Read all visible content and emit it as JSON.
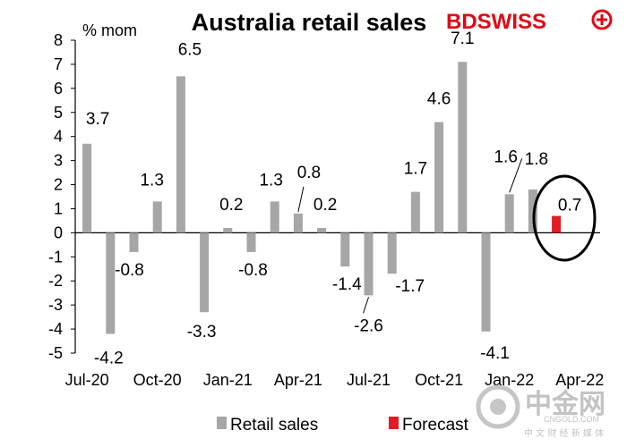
{
  "brand": {
    "logo_text_dark": "BD",
    "logo_text_red": "SWISS",
    "logo_color": "#e30613",
    "watermark_cn": "中金网",
    "watermark_url": "CNGOLD.COM",
    "watermark_sub": "中 文 财 经 新 媒 体"
  },
  "chart_data": {
    "type": "bar",
    "title": "Australia retail sales",
    "ylabel": "% mom",
    "ylim": [
      -5,
      8
    ],
    "yticks": [
      -5,
      -4,
      -3,
      -2,
      -1,
      0,
      1,
      2,
      3,
      4,
      5,
      6,
      7,
      8
    ],
    "categories": [
      "Jul-20",
      "Aug-20",
      "Sep-20",
      "Oct-20",
      "Nov-20",
      "Dec-20",
      "Jan-21",
      "Feb-21",
      "Mar-21",
      "Apr-21",
      "May-21",
      "Jun-21",
      "Jul-21",
      "Aug-21",
      "Sep-21",
      "Oct-21",
      "Nov-21",
      "Dec-21",
      "Jan-22",
      "Feb-22",
      "Mar-22",
      "Apr-22"
    ],
    "xtick_labels": [
      "Jul-20",
      "Oct-20",
      "Jan-21",
      "Apr-21",
      "Jul-21",
      "Oct-21",
      "Jan-22",
      "Apr-22"
    ],
    "series": [
      {
        "name": "Retail sales",
        "color": "#a6a6a6",
        "values": [
          3.7,
          -4.2,
          -0.8,
          1.3,
          6.5,
          -3.3,
          0.2,
          -0.8,
          1.3,
          0.8,
          0.2,
          -1.4,
          -2.6,
          -1.7,
          1.7,
          4.6,
          7.1,
          -4.1,
          1.6,
          1.8,
          null,
          null
        ]
      },
      {
        "name": "Forecast",
        "color": "#e31b23",
        "values": [
          null,
          null,
          null,
          null,
          null,
          null,
          null,
          null,
          null,
          null,
          null,
          null,
          null,
          null,
          null,
          null,
          null,
          null,
          null,
          null,
          0.7,
          null
        ]
      }
    ],
    "data_labels": [
      "3.7",
      "-4.2",
      "-0.8",
      "1.3",
      "6.5",
      "-3.3",
      "0.2",
      "-0.8",
      "1.3",
      "0.8",
      "0.2",
      "-1.4",
      "-2.6",
      "-1.7",
      "1.7",
      "4.6",
      "7.1",
      "-4.1",
      "1.6",
      "1.8",
      "0.7"
    ],
    "grid": false,
    "legend_position": "bottom",
    "annotation": "circle around forecast bar"
  }
}
